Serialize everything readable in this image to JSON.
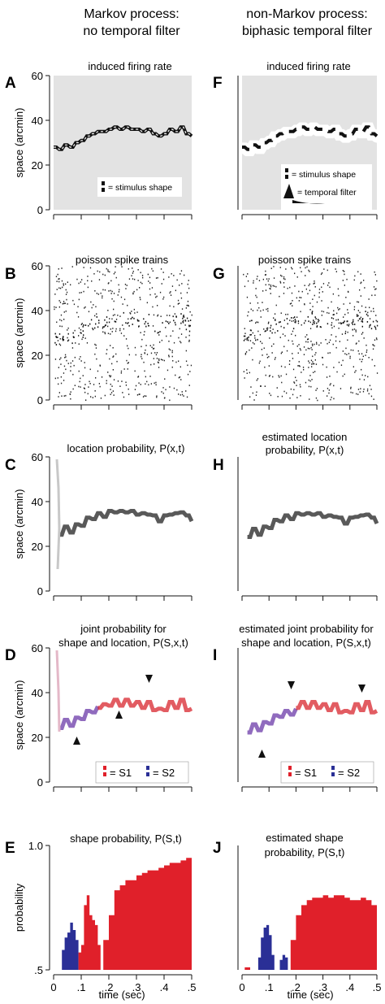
{
  "columns": [
    {
      "title_line1": "Markov process:",
      "title_line2": "no temporal filter"
    },
    {
      "title_line1": "non-Markov process:",
      "title_line2": "biphasic temporal filter"
    }
  ],
  "panels": {
    "A": {
      "letter": "A",
      "title": "induced firing rate",
      "legend_shape": "= stimulus shape"
    },
    "F": {
      "letter": "F",
      "title": "induced firing rate",
      "legend_shape": "= stimulus shape",
      "legend_filter": "= temporal filter"
    },
    "B": {
      "letter": "B",
      "title": "poisson spike trains"
    },
    "G": {
      "letter": "G",
      "title": "poisson spike trains"
    },
    "C": {
      "letter": "C",
      "title_line1": "location probability, P(x,t)"
    },
    "H": {
      "letter": "H",
      "title_line1": "estimated location",
      "title_line2": "probability, P(x,t)"
    },
    "D": {
      "letter": "D",
      "title_line1": "joint probability for",
      "title_line2": "shape and location, P(S,x,t)",
      "legend_s1": "= S1",
      "legend_s2": "= S2"
    },
    "I": {
      "letter": "I",
      "title_line1": "estimated joint probability for",
      "title_line2": "shape and location, P(S,x,t)",
      "legend_s1": "= S1",
      "legend_s2": "= S2"
    },
    "E": {
      "letter": "E",
      "title_line1": "shape probability, P(S,t)"
    },
    "J": {
      "letter": "J",
      "title_line1": "estimated shape",
      "title_line2": "probability, P(S,t)"
    }
  },
  "axes": {
    "space_ylabel": "space (arcmin)",
    "space_ticks": [
      "0",
      "20",
      "40",
      "60"
    ],
    "prob_ylabel": "probability",
    "prob_ticks": [
      ".5",
      "1.0"
    ],
    "xlabel": "time (sec)",
    "x_ticks": [
      "0",
      ".1",
      ".2",
      ".3",
      ".4",
      ".5"
    ]
  },
  "colors": {
    "s1": "#e0202a",
    "s2": "#2a2f96",
    "gray_bg": "#e3e3e3",
    "trace": "#111111"
  },
  "chart_data": [
    {
      "panel": "A",
      "type": "line",
      "title": "induced firing rate",
      "ylabel": "space (arcmin)",
      "ylim": [
        0,
        60
      ],
      "xlim": [
        0,
        0.5
      ],
      "x": [
        0,
        0.02,
        0.04,
        0.06,
        0.08,
        0.1,
        0.12,
        0.14,
        0.16,
        0.18,
        0.2,
        0.22,
        0.24,
        0.26,
        0.28,
        0.3,
        0.32,
        0.34,
        0.36,
        0.38,
        0.4,
        0.42,
        0.44,
        0.46,
        0.48,
        0.5
      ],
      "values": [
        28,
        27,
        29,
        28,
        30,
        31,
        33,
        34,
        35,
        35,
        36,
        37,
        36,
        37,
        36,
        36,
        35,
        36,
        34,
        33,
        34,
        36,
        35,
        37,
        34,
        33
      ]
    },
    {
      "panel": "F",
      "type": "line",
      "title": "induced firing rate",
      "ylabel": "space (arcmin)",
      "ylim": [
        0,
        60
      ],
      "xlim": [
        0,
        0.5
      ],
      "x": [
        0,
        0.02,
        0.04,
        0.06,
        0.08,
        0.1,
        0.12,
        0.14,
        0.16,
        0.18,
        0.2,
        0.22,
        0.24,
        0.26,
        0.28,
        0.3,
        0.32,
        0.34,
        0.36,
        0.38,
        0.4,
        0.42,
        0.44,
        0.46,
        0.48,
        0.5
      ],
      "values": [
        28,
        27,
        29,
        28,
        30,
        31,
        33,
        34,
        35,
        35,
        36,
        37,
        36,
        37,
        36,
        36,
        35,
        36,
        34,
        33,
        34,
        36,
        35,
        37,
        34,
        33
      ]
    },
    {
      "panel": "E",
      "type": "area",
      "title": "shape probability, P(S,t)",
      "ylabel": "probability",
      "xlabel": "time (sec)",
      "ylim": [
        0.5,
        1.0
      ],
      "xlim": [
        0,
        0.5
      ],
      "series": [
        {
          "color": "s2",
          "x": [
            0.03,
            0.04,
            0.05,
            0.06,
            0.07,
            0.08,
            0.09
          ],
          "values": [
            0.58,
            0.63,
            0.65,
            0.69,
            0.66,
            0.62,
            0.5
          ]
        },
        {
          "color": "s1",
          "x": [
            0.09,
            0.1,
            0.11,
            0.12,
            0.13,
            0.14,
            0.15,
            0.16,
            0.17
          ],
          "values": [
            0.57,
            0.6,
            0.76,
            0.8,
            0.72,
            0.7,
            0.68,
            0.6,
            0.52
          ]
        },
        {
          "color": "s1",
          "x": [
            0.18,
            0.2,
            0.22,
            0.24,
            0.26,
            0.28,
            0.3,
            0.32,
            0.34,
            0.36,
            0.38,
            0.4,
            0.42,
            0.44,
            0.46,
            0.48,
            0.5
          ],
          "values": [
            0.62,
            0.72,
            0.82,
            0.84,
            0.86,
            0.86,
            0.88,
            0.89,
            0.9,
            0.9,
            0.91,
            0.92,
            0.93,
            0.93,
            0.94,
            0.95,
            0.95
          ]
        }
      ]
    },
    {
      "panel": "J",
      "type": "area",
      "title": "estimated shape probability, P(S,t)",
      "ylabel": "probability",
      "xlabel": "time (sec)",
      "ylim": [
        0.5,
        1.0
      ],
      "xlim": [
        0,
        0.5
      ],
      "series": [
        {
          "color": "s1",
          "x": [
            0.0,
            0.01,
            0.02,
            0.03
          ],
          "values": [
            0.5,
            0.51,
            0.51,
            0.5
          ]
        },
        {
          "color": "s2",
          "x": [
            0.06,
            0.07,
            0.08,
            0.09,
            0.1,
            0.11,
            0.12
          ],
          "values": [
            0.55,
            0.63,
            0.67,
            0.68,
            0.64,
            0.56,
            0.5
          ]
        },
        {
          "color": "s2",
          "x": [
            0.14,
            0.15,
            0.16,
            0.17
          ],
          "values": [
            0.54,
            0.56,
            0.55,
            0.5
          ]
        },
        {
          "color": "s1",
          "x": [
            0.18,
            0.2,
            0.22,
            0.24,
            0.26,
            0.28,
            0.3,
            0.32,
            0.34,
            0.36,
            0.38,
            0.4,
            0.42,
            0.44,
            0.46,
            0.48,
            0.5
          ],
          "values": [
            0.62,
            0.72,
            0.76,
            0.78,
            0.79,
            0.79,
            0.8,
            0.79,
            0.8,
            0.8,
            0.79,
            0.78,
            0.78,
            0.79,
            0.78,
            0.76,
            0.77
          ]
        }
      ]
    }
  ]
}
